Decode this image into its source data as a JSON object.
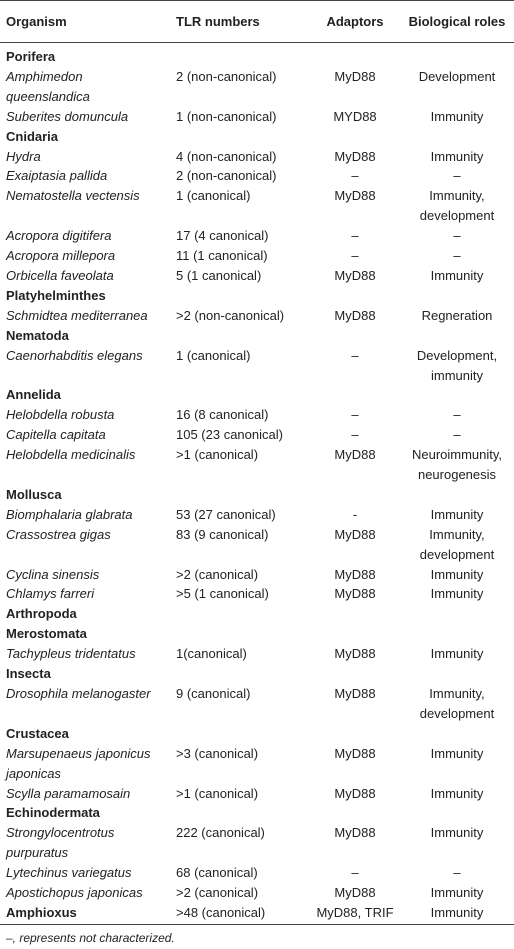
{
  "table": {
    "header": [
      "Organism",
      "TLR numbers",
      "Adaptors",
      "Biological roles"
    ],
    "rows": [
      {
        "group": "Porifera"
      },
      {
        "cells": [
          [
            "Amphimedon",
            "queenslandica"
          ],
          "2 (non-canonical)",
          "MyD88",
          "Development"
        ]
      },
      {
        "cells": [
          "Suberites domuncula",
          "1 (non-canonical)",
          "MYD88",
          "Immunity"
        ]
      },
      {
        "group": "Cnidaria"
      },
      {
        "cells": [
          "Hydra",
          "4 (non-canonical)",
          "MyD88",
          "Immunity"
        ]
      },
      {
        "cells": [
          "Exaiptasia pallida",
          "2 (non-canonical)",
          "–",
          "–"
        ]
      },
      {
        "cells": [
          "Nematostella vectensis",
          "1 (canonical)",
          "MyD88",
          [
            "Immunity,",
            "development"
          ]
        ]
      },
      {
        "cells": [
          "Acropora digitifera",
          "17 (4 canonical)",
          "–",
          "–"
        ]
      },
      {
        "cells": [
          "Acropora millepora",
          "11 (1 canonical)",
          "–",
          "–"
        ]
      },
      {
        "cells": [
          "Orbicella faveolata",
          "5 (1 canonical)",
          "MyD88",
          "Immunity"
        ]
      },
      {
        "group": "Platyhelminthes"
      },
      {
        "cells": [
          "Schmidtea mediterranea",
          ">2 (non-canonical)",
          "MyD88",
          "Regneration"
        ]
      },
      {
        "group": "Nematoda"
      },
      {
        "cells": [
          "Caenorhabditis elegans",
          "1 (canonical)",
          "–",
          [
            "Development,",
            "immunity"
          ]
        ]
      },
      {
        "group": "Annelida"
      },
      {
        "cells": [
          "Helobdella robusta",
          "16 (8 canonical)",
          "–",
          "–"
        ]
      },
      {
        "cells": [
          "Capitella capitata",
          "105 (23 canonical)",
          "–",
          "–"
        ]
      },
      {
        "cells": [
          "Helobdella medicinalis",
          ">1 (canonical)",
          "MyD88",
          [
            "Neuroimmunity,",
            "neurogenesis"
          ]
        ]
      },
      {
        "group": "Mollusca"
      },
      {
        "cells": [
          "Biomphalaria glabrata",
          "53 (27 canonical)",
          "-",
          "Immunity"
        ]
      },
      {
        "cells": [
          "Crassostrea gigas",
          "83 (9 canonical)",
          "MyD88",
          [
            "Immunity,",
            "development"
          ]
        ]
      },
      {
        "cells": [
          "Cyclina sinensis",
          ">2 (canonical)",
          "MyD88",
          "Immunity"
        ]
      },
      {
        "cells": [
          "Chlamys farreri",
          ">5 (1 canonical)",
          "MyD88",
          "Immunity"
        ]
      },
      {
        "group": "Arthropoda"
      },
      {
        "group": "Merostomata"
      },
      {
        "cells": [
          "Tachypleus tridentatus",
          "1(canonical)",
          "MyD88",
          "Immunity"
        ]
      },
      {
        "group": "Insecta"
      },
      {
        "cells": [
          "Drosophila melanogaster",
          "9 (canonical)",
          "MyD88",
          [
            "Immunity,",
            "development"
          ]
        ]
      },
      {
        "group": "Crustacea"
      },
      {
        "cells": [
          [
            "Marsupenaeus japonicus",
            "japonicas"
          ],
          ">3 (canonical)",
          "MyD88",
          "Immunity"
        ]
      },
      {
        "cells": [
          "Scylla paramamosain",
          ">1 (canonical)",
          "MyD88",
          "Immunity"
        ]
      },
      {
        "group": "Echinodermata"
      },
      {
        "cells": [
          [
            "Strongylocentrotus",
            "purpuratus"
          ],
          "222 (canonical)",
          "MyD88",
          "Immunity"
        ]
      },
      {
        "cells": [
          "Lytechinus variegatus",
          "68 (canonical)",
          "–",
          "–"
        ]
      },
      {
        "cells": [
          "Apostichopus japonicas",
          ">2 (canonical)",
          "MyD88",
          "Immunity"
        ]
      },
      {
        "cells": [
          "Amphioxus",
          ">48 (canonical)",
          "MyD88, TRIF",
          "Immunity"
        ],
        "bold_first": true
      }
    ],
    "footnote": "–, represents not characterized."
  }
}
